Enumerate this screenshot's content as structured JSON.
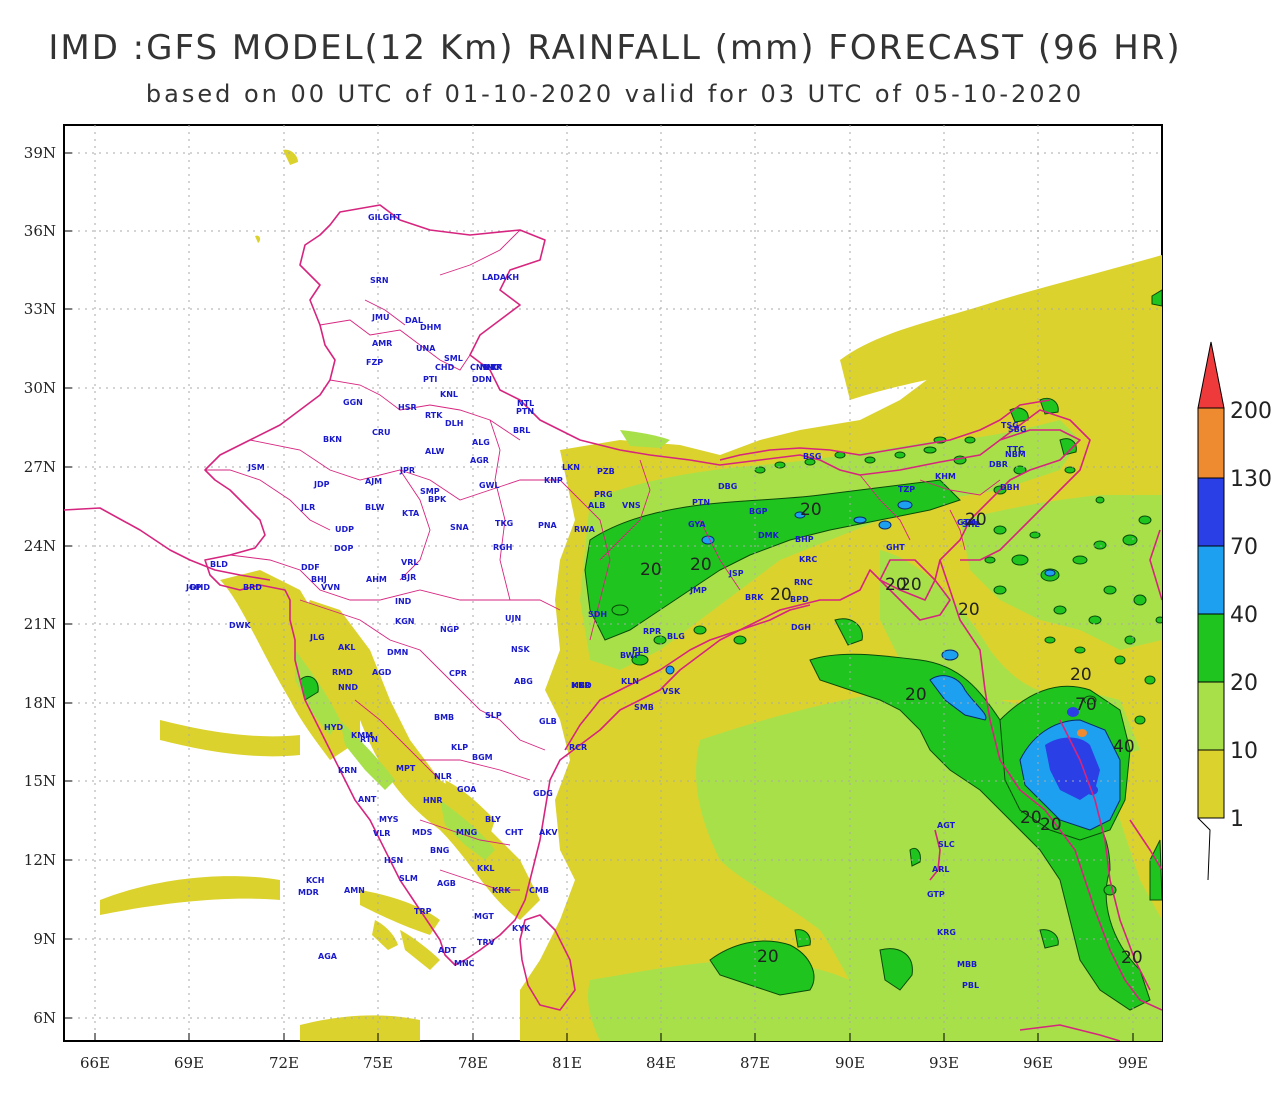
{
  "title": "IMD :GFS MODEL(12 Km) RAINFALL (mm) FORECAST (96 HR)",
  "subtitle": "based on 00 UTC of 01-10-2020 valid for 03 UTC of 05-10-2020",
  "axes": {
    "lat_ticks": [
      "39N",
      "36N",
      "33N",
      "30N",
      "27N",
      "24N",
      "21N",
      "18N",
      "15N",
      "12N",
      "9N",
      "6N"
    ],
    "lon_ticks": [
      "66E",
      "69E",
      "72E",
      "75E",
      "78E",
      "81E",
      "84E",
      "87E",
      "90E",
      "93E",
      "96E",
      "99E"
    ]
  },
  "legend": {
    "levels": [
      "1",
      "10",
      "20",
      "40",
      "70",
      "130",
      "200"
    ],
    "colors": [
      "#dcd22e",
      "#a8e04a",
      "#1fc41f",
      "#1ea0f0",
      "#2a3fe6",
      "#ee8a30",
      "#ee3a3a"
    ]
  },
  "contour_labels": [
    "20",
    "20",
    "20",
    "20",
    "20",
    "20",
    "20",
    "20",
    "20",
    "20",
    "20",
    "20",
    "70",
    "40",
    "20",
    "20"
  ],
  "stations": [
    "GILGHT",
    "SRN",
    "LADAKH",
    "JMU",
    "DAL",
    "DHM",
    "AMR",
    "UNA",
    "SML",
    "FZP",
    "CHD",
    "UTK",
    "PTI",
    "DDN",
    "KNL",
    "GGN",
    "HSR",
    "RTK",
    "DLH",
    "NTL",
    "PTN",
    "BRL",
    "BKN",
    "CRU",
    "ALG",
    "AGR",
    "ALW",
    "JSM",
    "JPR",
    "JDP",
    "GWL",
    "LKN",
    "KNP",
    "PZB",
    "AJM",
    "SMP",
    "PRG",
    "ALB",
    "VNS",
    "BPK",
    "JLR",
    "BLW",
    "KTA",
    "UDP",
    "SNA",
    "TKG",
    "RWA",
    "RGH",
    "PNA",
    "DOP",
    "DBG",
    "PTN",
    "BGP",
    "DMK",
    "BHP",
    "KRC",
    "GYA",
    "RNC",
    "JSP",
    "JMP",
    "BRK",
    "BPD",
    "DGH",
    "SDH",
    "RPR",
    "BLG",
    "PLB",
    "BWP",
    "SMB",
    "VSK",
    "KLN",
    "KKR",
    "JGP",
    "BLD",
    "DDF",
    "BHJ",
    "AHM",
    "VVN",
    "DHD",
    "BRD",
    "DWK",
    "BJR",
    "VRL",
    "IND",
    "UJN",
    "KGN",
    "NGP",
    "JLG",
    "AKL",
    "DMN",
    "NSK",
    "AGD",
    "CPR",
    "ABG",
    "NND",
    "RMD",
    "MBD",
    "BMB",
    "SLP",
    "GLB",
    "HYD",
    "KMM",
    "RTN",
    "KLP",
    "BGM",
    "RCR",
    "KRN",
    "MPT",
    "GOA",
    "GDG",
    "ANT",
    "NLR",
    "HNR",
    "BLY",
    "CHT",
    "AKV",
    "VLR",
    "MDS",
    "MNG",
    "HSN",
    "BNG",
    "KKL",
    "MYS",
    "SLM",
    "AGB",
    "KRK",
    "CMB",
    "TRP",
    "MGT",
    "KCH",
    "MDR",
    "AMN",
    "AGA",
    "ADT",
    "MNC",
    "TRV",
    "KYK",
    "TTC",
    "NBM",
    "DBR",
    "DBH",
    "SBG",
    "TSG",
    "KHM",
    "BSG",
    "TZP",
    "GTK",
    "GHT",
    "SHL",
    "IML",
    "AGT",
    "SLC",
    "ARL",
    "GTP",
    "KRG",
    "MBB",
    "PBL",
    "CNB",
    "NNC",
    "KR"
  ]
}
